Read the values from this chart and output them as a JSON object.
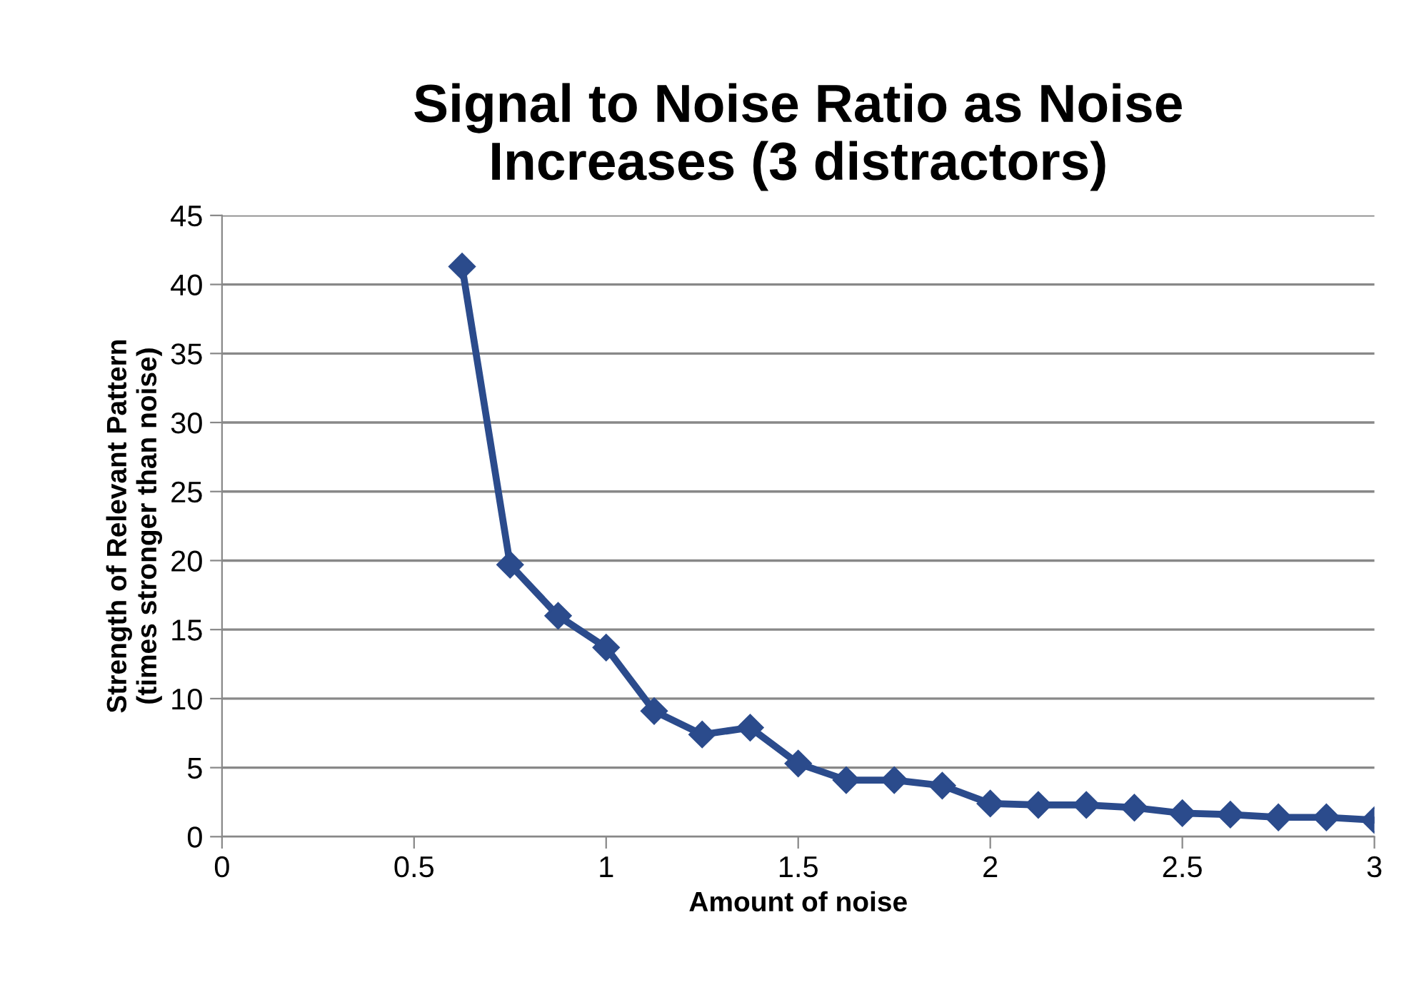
{
  "chart_data": {
    "type": "line",
    "title": "Signal to Noise Ratio as Noise\nIncreases (3 distractors)",
    "xlabel": "Amount of noise",
    "ylabel": "Strength of Relevant Pattern\n(times stronger than noise)",
    "x": [
      0.625,
      0.75,
      0.875,
      1,
      1.125,
      1.25,
      1.375,
      1.5,
      1.625,
      1.75,
      1.875,
      2,
      2.125,
      2.25,
      2.375,
      2.5,
      2.625,
      2.75,
      2.875,
      3
    ],
    "series": [
      {
        "color": "#2b4b8c",
        "values": [
          41.3,
          19.7,
          16.0,
          13.7,
          9.1,
          7.4,
          7.9,
          5.3,
          4.1,
          4.1,
          3.7,
          2.4,
          2.3,
          2.3,
          2.1,
          1.7,
          1.6,
          1.4,
          1.4,
          1.2
        ]
      }
    ],
    "xlim": [
      0,
      3
    ],
    "xticks": [
      0,
      0.5,
      1,
      1.5,
      2,
      2.5,
      3
    ],
    "ylim": [
      0,
      45
    ],
    "yticks": [
      0,
      5,
      10,
      15,
      20,
      25,
      30,
      35,
      40,
      45
    ],
    "grid": "y",
    "marker": "diamond",
    "line_style": "solid"
  }
}
